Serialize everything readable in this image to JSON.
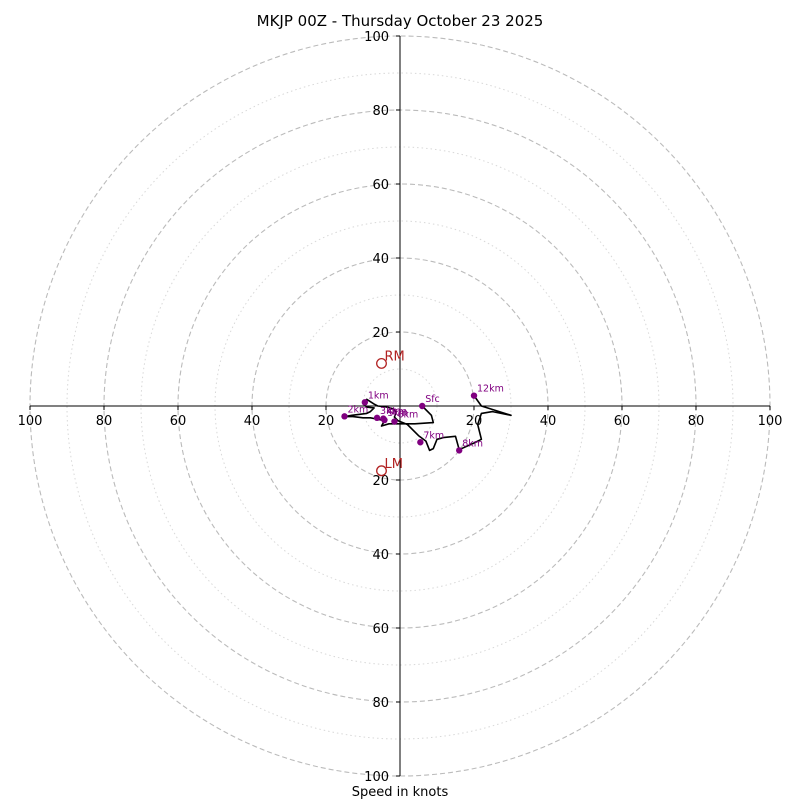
{
  "chart_data": {
    "type": "line",
    "title": "MKJP 00Z - Thursday October 23 2025",
    "xlabel": "Speed in knots",
    "ylabel": "",
    "range": [
      -100,
      100
    ],
    "ring_major": [
      20,
      40,
      60,
      80,
      100
    ],
    "ring_minor": [
      10,
      30,
      50,
      70,
      90
    ],
    "x_ticks": [
      {
        "v": -100,
        "label": "100"
      },
      {
        "v": -80,
        "label": "80"
      },
      {
        "v": -60,
        "label": "60"
      },
      {
        "v": -40,
        "label": "40"
      },
      {
        "v": -20,
        "label": "20"
      },
      {
        "v": 20,
        "label": "20"
      },
      {
        "v": 40,
        "label": "40"
      },
      {
        "v": 60,
        "label": "60"
      },
      {
        "v": 80,
        "label": "80"
      },
      {
        "v": 100,
        "label": "100"
      }
    ],
    "y_ticks": [
      {
        "v": 100,
        "label": "100"
      },
      {
        "v": 80,
        "label": "80"
      },
      {
        "v": 60,
        "label": "60"
      },
      {
        "v": 40,
        "label": "40"
      },
      {
        "v": 20,
        "label": "20"
      },
      {
        "v": -20,
        "label": "20"
      },
      {
        "v": -40,
        "label": "40"
      },
      {
        "v": -60,
        "label": "60"
      },
      {
        "v": -80,
        "label": "80"
      },
      {
        "v": -100,
        "label": "100"
      }
    ],
    "hodograph": [
      [
        6,
        0
      ],
      [
        8.5,
        -2.5
      ],
      [
        9,
        -4.5
      ],
      [
        4,
        -4.8
      ],
      [
        0,
        -4.8
      ],
      [
        -3,
        -4.8
      ],
      [
        -5,
        -5.4
      ],
      [
        -4.2,
        -4
      ],
      [
        -5.8,
        -3.6
      ],
      [
        -6.5,
        -3.5
      ],
      [
        -8,
        -3.2
      ],
      [
        -10,
        -3.2
      ],
      [
        -13,
        -2.8
      ],
      [
        -15,
        -2.9
      ],
      [
        -13,
        -2.5
      ],
      [
        -9,
        -2
      ],
      [
        -8,
        -1.5
      ],
      [
        -7,
        -0.5
      ],
      [
        -9,
        -0.3
      ],
      [
        -10,
        0.8
      ],
      [
        -9,
        1.8
      ],
      [
        -7,
        0.5
      ],
      [
        -6,
        0
      ],
      [
        -4,
        -0.2
      ],
      [
        -2,
        -0.7
      ],
      [
        -1,
        -1.5
      ],
      [
        -1.5,
        -3
      ],
      [
        -0.5,
        -4
      ],
      [
        2,
        -5
      ],
      [
        5,
        -8
      ],
      [
        7,
        -9.5
      ],
      [
        8,
        -12
      ],
      [
        9,
        -11.5
      ],
      [
        10,
        -9
      ],
      [
        12,
        -8.5
      ],
      [
        15,
        -8.2
      ],
      [
        16,
        -11.8
      ],
      [
        20,
        -10
      ],
      [
        22,
        -9
      ],
      [
        21,
        -5
      ],
      [
        22,
        -2
      ],
      [
        25,
        -1.5
      ],
      [
        30,
        -2.5
      ],
      [
        22,
        0
      ],
      [
        20,
        2.8
      ]
    ],
    "height_markers": [
      {
        "label": "Sfc",
        "x": 6,
        "y": 0
      },
      {
        "label": "1km",
        "x": -9.5,
        "y": 1
      },
      {
        "label": "2km",
        "x": -15,
        "y": -2.8
      },
      {
        "label": "3km",
        "x": -6.2,
        "y": -3.2
      },
      {
        "label": "4km",
        "x": -4.5,
        "y": -3.4
      },
      {
        "label": "5km",
        "x": -4.2,
        "y": -3.8
      },
      {
        "label": "6km",
        "x": -1.5,
        "y": -4.2
      },
      {
        "label": "7km",
        "x": 5.5,
        "y": -9.8
      },
      {
        "label": "8km",
        "x": 16,
        "y": -12
      },
      {
        "label": "12km",
        "x": 20,
        "y": 2.8
      }
    ],
    "storm_motion": [
      {
        "label": "RM",
        "x": -5,
        "y": 11.5
      },
      {
        "label": "LM",
        "x": -5,
        "y": -17.5
      }
    ],
    "colors": {
      "hodograph": "#000000",
      "marker": "#800080",
      "storm_motion": "#b22222",
      "grid": "#bbbbbb"
    }
  }
}
